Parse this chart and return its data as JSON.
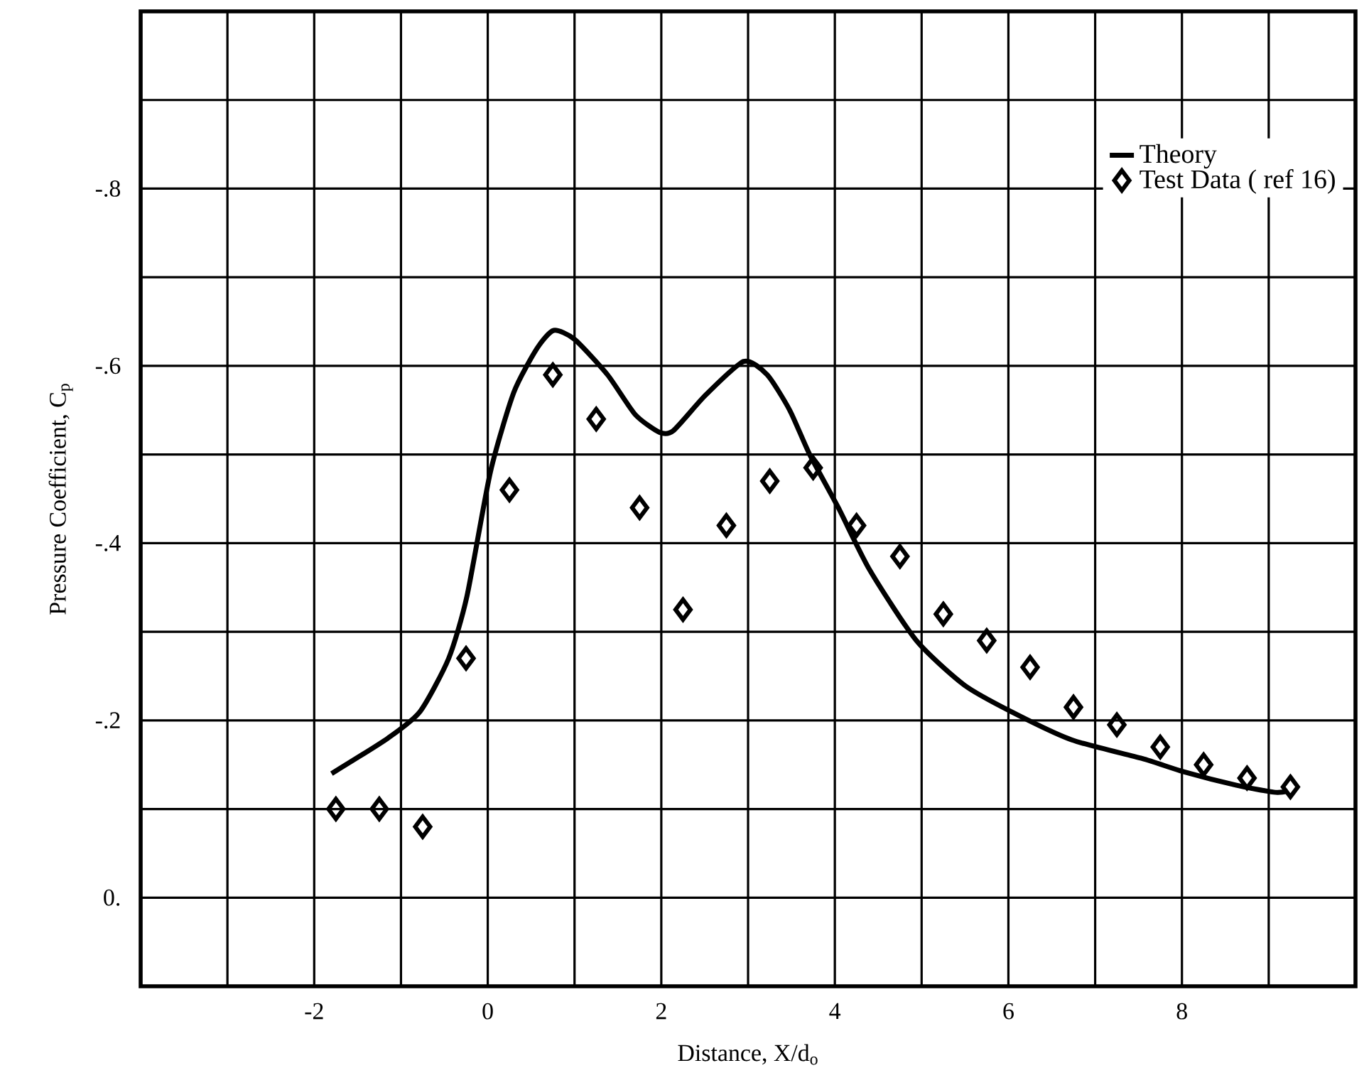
{
  "chart_data": {
    "type": "line",
    "xlabel": "Distance, X/d$_{o}$",
    "ylabel": "Pressure Coefficient, C$_{p}$",
    "xlim": [
      -4,
      10
    ],
    "ylim": [
      0.1,
      -1.0
    ],
    "xticks": [
      {
        "value": -4,
        "label": null
      },
      {
        "value": -3,
        "label": null
      },
      -2,
      {
        "value": -1,
        "label": null
      },
      0,
      {
        "value": 1,
        "label": null
      },
      2,
      {
        "value": 3,
        "label": null
      },
      4,
      {
        "value": 5,
        "label": null
      },
      6,
      {
        "value": 7,
        "label": null
      },
      8,
      {
        "value": 9,
        "label": null
      },
      {
        "value": 10,
        "label": null
      }
    ],
    "yticks": [
      {
        "value": 0.1,
        "label": null
      },
      {
        "value": 0,
        "label": "0."
      },
      {
        "value": -0.1,
        "label": null
      },
      {
        "value": -0.2,
        "label": "-.2"
      },
      {
        "value": -0.3,
        "label": null
      },
      {
        "value": -0.4,
        "label": "-.4"
      },
      {
        "value": -0.5,
        "label": null
      },
      {
        "value": -0.6,
        "label": "-.6"
      },
      {
        "value": -0.7,
        "label": null
      },
      {
        "value": -0.8,
        "label": "-.8"
      },
      {
        "value": -0.9,
        "label": null
      },
      {
        "value": -1.0,
        "label": null
      }
    ],
    "grid": true,
    "legend": "top right",
    "series": [
      {
        "name": "Theory",
        "color": "#000000",
        "marker": "none",
        "line_style": "solid",
        "x": [
          -1.8,
          -1.15,
          -0.78,
          -0.45,
          -0.24,
          0.03,
          0.3,
          0.57,
          0.76,
          1.0,
          1.38,
          1.7,
          1.98,
          2.14,
          2.51,
          2.95,
          3.22,
          3.48,
          3.71,
          4.04,
          4.4,
          4.94,
          5.49,
          6.03,
          6.73,
          7.54,
          8.02,
          8.62,
          9.06,
          9.22
        ],
        "values": [
          -0.14,
          -0.18,
          -0.21,
          -0.27,
          -0.34,
          -0.48,
          -0.57,
          -0.62,
          -0.64,
          -0.63,
          -0.59,
          -0.545,
          -0.525,
          -0.527,
          -0.567,
          -0.605,
          -0.59,
          -0.55,
          -0.5,
          -0.44,
          -0.37,
          -0.29,
          -0.24,
          -0.21,
          -0.178,
          -0.157,
          -0.142,
          -0.127,
          -0.119,
          -0.12
        ]
      },
      {
        "name": "Test Data ( ref 16)",
        "type": "scatter",
        "color": "#000000",
        "marker": "diamond",
        "x": [
          -1.75,
          -1.25,
          -0.75,
          -0.25,
          0.25,
          0.75,
          1.25,
          1.75,
          2.25,
          2.75,
          3.25,
          3.75,
          4.25,
          4.75,
          5.25,
          5.75,
          6.25,
          6.75,
          7.25,
          7.75,
          8.25,
          8.75,
          9.25
        ],
        "values": [
          -0.1,
          -0.1,
          -0.08,
          -0.27,
          -0.46,
          -0.59,
          -0.54,
          -0.44,
          -0.325,
          -0.42,
          -0.47,
          -0.485,
          -0.42,
          -0.385,
          -0.32,
          -0.29,
          -0.26,
          -0.215,
          -0.195,
          -0.17,
          -0.15,
          -0.135,
          -0.125
        ]
      }
    ]
  }
}
